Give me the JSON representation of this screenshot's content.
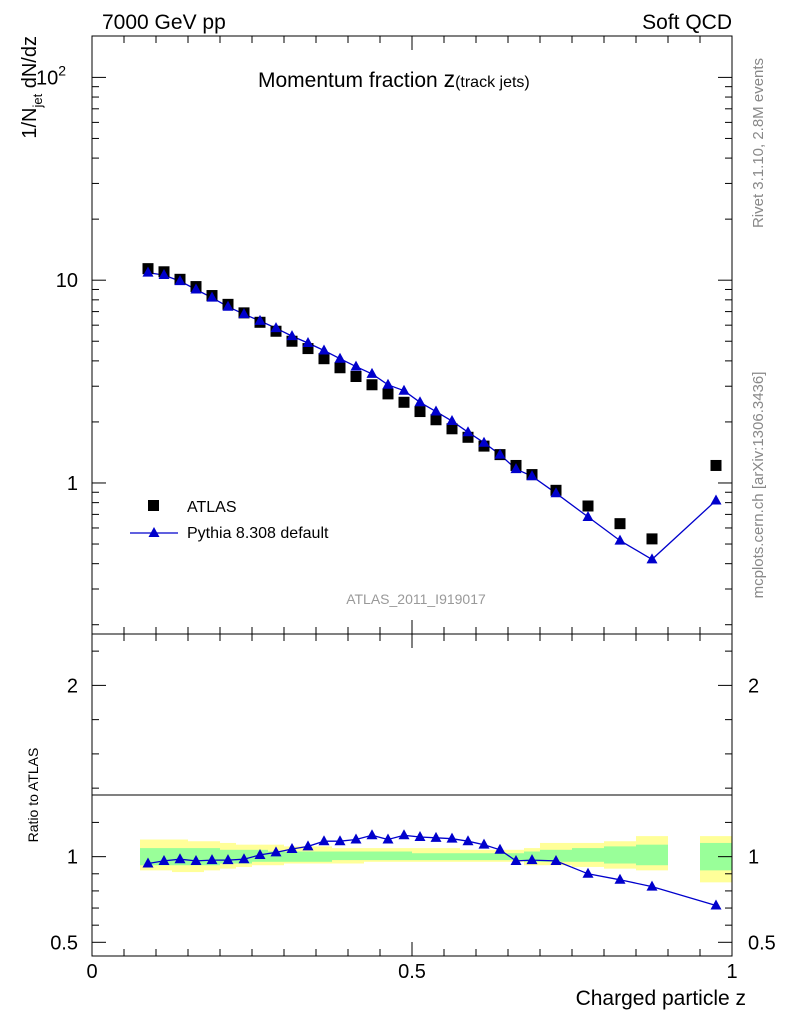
{
  "header": {
    "left": "7000 GeV pp",
    "right": "Soft QCD"
  },
  "side": {
    "rivet": "Rivet 3.1.10,  2.8M events",
    "mcplots": "mcplots.cern.ch [arXiv:1306.3436]"
  },
  "chart_data": [
    {
      "type": "scatter",
      "title_main": "Momentum fraction ",
      "title_z": "z",
      "title_sub": "(track jets)",
      "ylabel_pre": "1/N",
      "ylabel_sub": "jet",
      "ylabel_post": " dN/dz",
      "analysis_id": "ATLAS_2011_I919017",
      "yscale": "log",
      "ylim": [
        0.18,
        160
      ],
      "xlim": [
        0,
        1
      ],
      "ytick_labels": [
        {
          "value": 100,
          "base": "10",
          "exp": "2"
        },
        {
          "value": 10,
          "base": "10",
          "exp": ""
        },
        {
          "value": 1,
          "base": "1",
          "exp": ""
        }
      ],
      "legend": {
        "position": "bottom-left",
        "atlas": "ATLAS",
        "pythia": "Pythia 8.308 default"
      },
      "x": [
        0.0875,
        0.1125,
        0.1375,
        0.1625,
        0.1875,
        0.2125,
        0.2375,
        0.2625,
        0.2875,
        0.3125,
        0.3375,
        0.3625,
        0.3875,
        0.4125,
        0.4375,
        0.4625,
        0.4875,
        0.5125,
        0.5375,
        0.5625,
        0.5875,
        0.6125,
        0.6375,
        0.6625,
        0.6875,
        0.725,
        0.775,
        0.825,
        0.875,
        0.975
      ],
      "series": [
        {
          "name": "ATLAS",
          "values": [
            11.4,
            11.0,
            10.1,
            9.3,
            8.4,
            7.6,
            6.9,
            6.2,
            5.6,
            5.0,
            4.6,
            4.1,
            3.7,
            3.35,
            3.05,
            2.75,
            2.5,
            2.25,
            2.05,
            1.85,
            1.68,
            1.52,
            1.38,
            1.22,
            1.1,
            0.92,
            0.77,
            0.63,
            0.53,
            1.22
          ]
        },
        {
          "name": "Pythia 8.308 default",
          "values": [
            10.9,
            10.6,
            9.9,
            9.0,
            8.2,
            7.4,
            6.8,
            6.3,
            5.8,
            5.3,
            4.9,
            4.5,
            4.1,
            3.75,
            3.45,
            3.05,
            2.85,
            2.5,
            2.25,
            2.02,
            1.78,
            1.58,
            1.38,
            1.17,
            1.08,
            0.89,
            0.68,
            0.52,
            0.42,
            0.82
          ]
        }
      ]
    },
    {
      "type": "line",
      "ylabel": "Ratio to ATLAS",
      "xlabel": "Charged particle z",
      "xlim": [
        0,
        1
      ],
      "ylim": [
        0.42,
        2.3
      ],
      "ytick_labels": [
        "2",
        "1",
        "0.5"
      ],
      "ytick_values": [
        2,
        1,
        0.5
      ],
      "xtick_labels": [
        "0",
        "0.5",
        "1"
      ],
      "xtick_values": [
        0,
        0.5,
        1
      ],
      "bin_edges": [
        0.075,
        0.1,
        0.125,
        0.15,
        0.175,
        0.2,
        0.225,
        0.25,
        0.275,
        0.3,
        0.325,
        0.35,
        0.375,
        0.4,
        0.425,
        0.45,
        0.475,
        0.5,
        0.525,
        0.55,
        0.575,
        0.6,
        0.625,
        0.65,
        0.675,
        0.7,
        0.75,
        0.8,
        0.85,
        0.9
      ],
      "band_bins": [
        [
          0.075,
          0.1,
          0.95,
          1.05,
          0.92,
          1.1
        ],
        [
          0.1,
          0.125,
          0.95,
          1.05,
          0.92,
          1.1
        ],
        [
          0.125,
          0.15,
          0.95,
          1.05,
          0.91,
          1.1
        ],
        [
          0.15,
          0.175,
          0.95,
          1.05,
          0.91,
          1.09
        ],
        [
          0.175,
          0.2,
          0.95,
          1.05,
          0.92,
          1.09
        ],
        [
          0.2,
          0.225,
          0.96,
          1.04,
          0.93,
          1.08
        ],
        [
          0.225,
          0.25,
          0.96,
          1.04,
          0.94,
          1.07
        ],
        [
          0.25,
          0.275,
          0.97,
          1.04,
          0.95,
          1.07
        ],
        [
          0.275,
          0.3,
          0.97,
          1.03,
          0.95,
          1.07
        ],
        [
          0.3,
          0.325,
          0.97,
          1.03,
          0.96,
          1.06
        ],
        [
          0.325,
          0.35,
          0.97,
          1.03,
          0.96,
          1.06
        ],
        [
          0.35,
          0.375,
          0.97,
          1.03,
          0.96,
          1.06
        ],
        [
          0.375,
          0.4,
          0.98,
          1.03,
          0.96,
          1.05
        ],
        [
          0.4,
          0.425,
          0.98,
          1.03,
          0.96,
          1.05
        ],
        [
          0.425,
          0.45,
          0.98,
          1.03,
          0.97,
          1.05
        ],
        [
          0.45,
          0.475,
          0.98,
          1.03,
          0.97,
          1.05
        ],
        [
          0.475,
          0.5,
          0.98,
          1.03,
          0.97,
          1.05
        ],
        [
          0.5,
          0.525,
          0.98,
          1.02,
          0.97,
          1.05
        ],
        [
          0.525,
          0.55,
          0.98,
          1.02,
          0.97,
          1.05
        ],
        [
          0.55,
          0.575,
          0.98,
          1.02,
          0.97,
          1.05
        ],
        [
          0.575,
          0.6,
          0.98,
          1.02,
          0.97,
          1.04
        ],
        [
          0.6,
          0.625,
          0.98,
          1.02,
          0.97,
          1.04
        ],
        [
          0.625,
          0.65,
          0.98,
          1.02,
          0.97,
          1.04
        ],
        [
          0.65,
          0.675,
          0.98,
          1.02,
          0.97,
          1.04
        ],
        [
          0.675,
          0.7,
          0.97,
          1.03,
          0.95,
          1.05
        ],
        [
          0.7,
          0.75,
          0.97,
          1.04,
          0.95,
          1.08
        ],
        [
          0.75,
          0.8,
          0.97,
          1.05,
          0.94,
          1.08
        ],
        [
          0.8,
          0.85,
          0.96,
          1.06,
          0.93,
          1.09
        ],
        [
          0.85,
          0.9,
          0.95,
          1.07,
          0.92,
          1.12
        ],
        [
          0.95,
          1.0,
          0.92,
          1.08,
          0.85,
          1.12
        ]
      ],
      "series": [
        {
          "name": "Pythia 8.308 default",
          "values": [
            0.96,
            0.975,
            0.985,
            0.975,
            0.98,
            0.98,
            0.985,
            1.01,
            1.025,
            1.045,
            1.06,
            1.09,
            1.09,
            1.1,
            1.125,
            1.1,
            1.125,
            1.115,
            1.11,
            1.105,
            1.09,
            1.07,
            1.04,
            0.975,
            0.98,
            0.975,
            0.9,
            0.865,
            0.825,
            0.715
          ]
        }
      ]
    }
  ]
}
